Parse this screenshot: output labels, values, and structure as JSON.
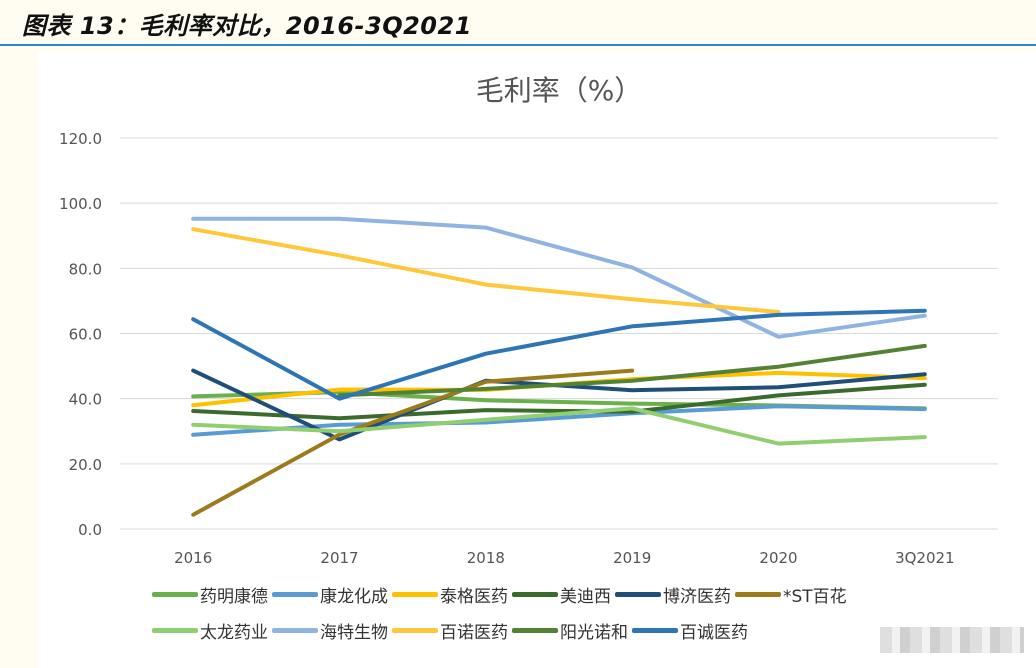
{
  "figure": {
    "title": "图表 13：毛利率对比，2016-3Q2021"
  },
  "chart_data": {
    "type": "line",
    "title": "毛利率（%）",
    "xlabel": "",
    "ylabel": "",
    "categories": [
      "2016",
      "2017",
      "2018",
      "2019",
      "2020",
      "3Q2021"
    ],
    "ylim": [
      0,
      120
    ],
    "yticks": [
      "0.0",
      "20.0",
      "40.0",
      "60.0",
      "80.0",
      "100.0",
      "120.0"
    ],
    "grid": true,
    "legend_position": "bottom",
    "series": [
      {
        "name": "药明康德",
        "color": "#6ab04c",
        "values": [
          40.7,
          42.0,
          39.5,
          38.5,
          37.9,
          37.0
        ]
      },
      {
        "name": "康龙化成",
        "color": "#5b9bd5",
        "values": [
          28.9,
          32.0,
          32.7,
          35.5,
          37.7,
          36.8
        ]
      },
      {
        "name": "泰格医药",
        "color": "#ffc000",
        "values": [
          38.0,
          42.8,
          42.7,
          46.0,
          47.9,
          46.3
        ]
      },
      {
        "name": "美迪西",
        "color": "#3a6b2c",
        "values": [
          36.2,
          34.0,
          36.5,
          36.0,
          41.0,
          44.3
        ]
      },
      {
        "name": "博济医药",
        "color": "#1f4e79",
        "values": [
          48.6,
          27.5,
          45.5,
          42.6,
          43.5,
          47.5
        ]
      },
      {
        "name": "*ST百花",
        "color": "#9c7b1d",
        "values": [
          4.4,
          29.0,
          45.2,
          48.6,
          null,
          null
        ]
      },
      {
        "name": "太龙药业",
        "color": "#8fcf6f",
        "values": [
          32.0,
          30.0,
          33.5,
          37.0,
          26.2,
          28.2
        ]
      },
      {
        "name": "海特生物",
        "color": "#8fb4e3",
        "values": [
          95.2,
          95.2,
          92.5,
          80.3,
          59.0,
          65.5
        ]
      },
      {
        "name": "百诺医药",
        "color": "#ffc83a",
        "values": [
          92.0,
          84.0,
          75.0,
          70.5,
          66.6,
          null
        ]
      },
      {
        "name": "阳光诺和",
        "color": "#548235",
        "values": [
          null,
          41.0,
          43.0,
          45.5,
          49.8,
          56.2
        ]
      },
      {
        "name": "百诚医药",
        "color": "#2e75b6",
        "values": [
          64.4,
          40.0,
          53.8,
          62.2,
          65.7,
          67.0
        ]
      }
    ]
  }
}
